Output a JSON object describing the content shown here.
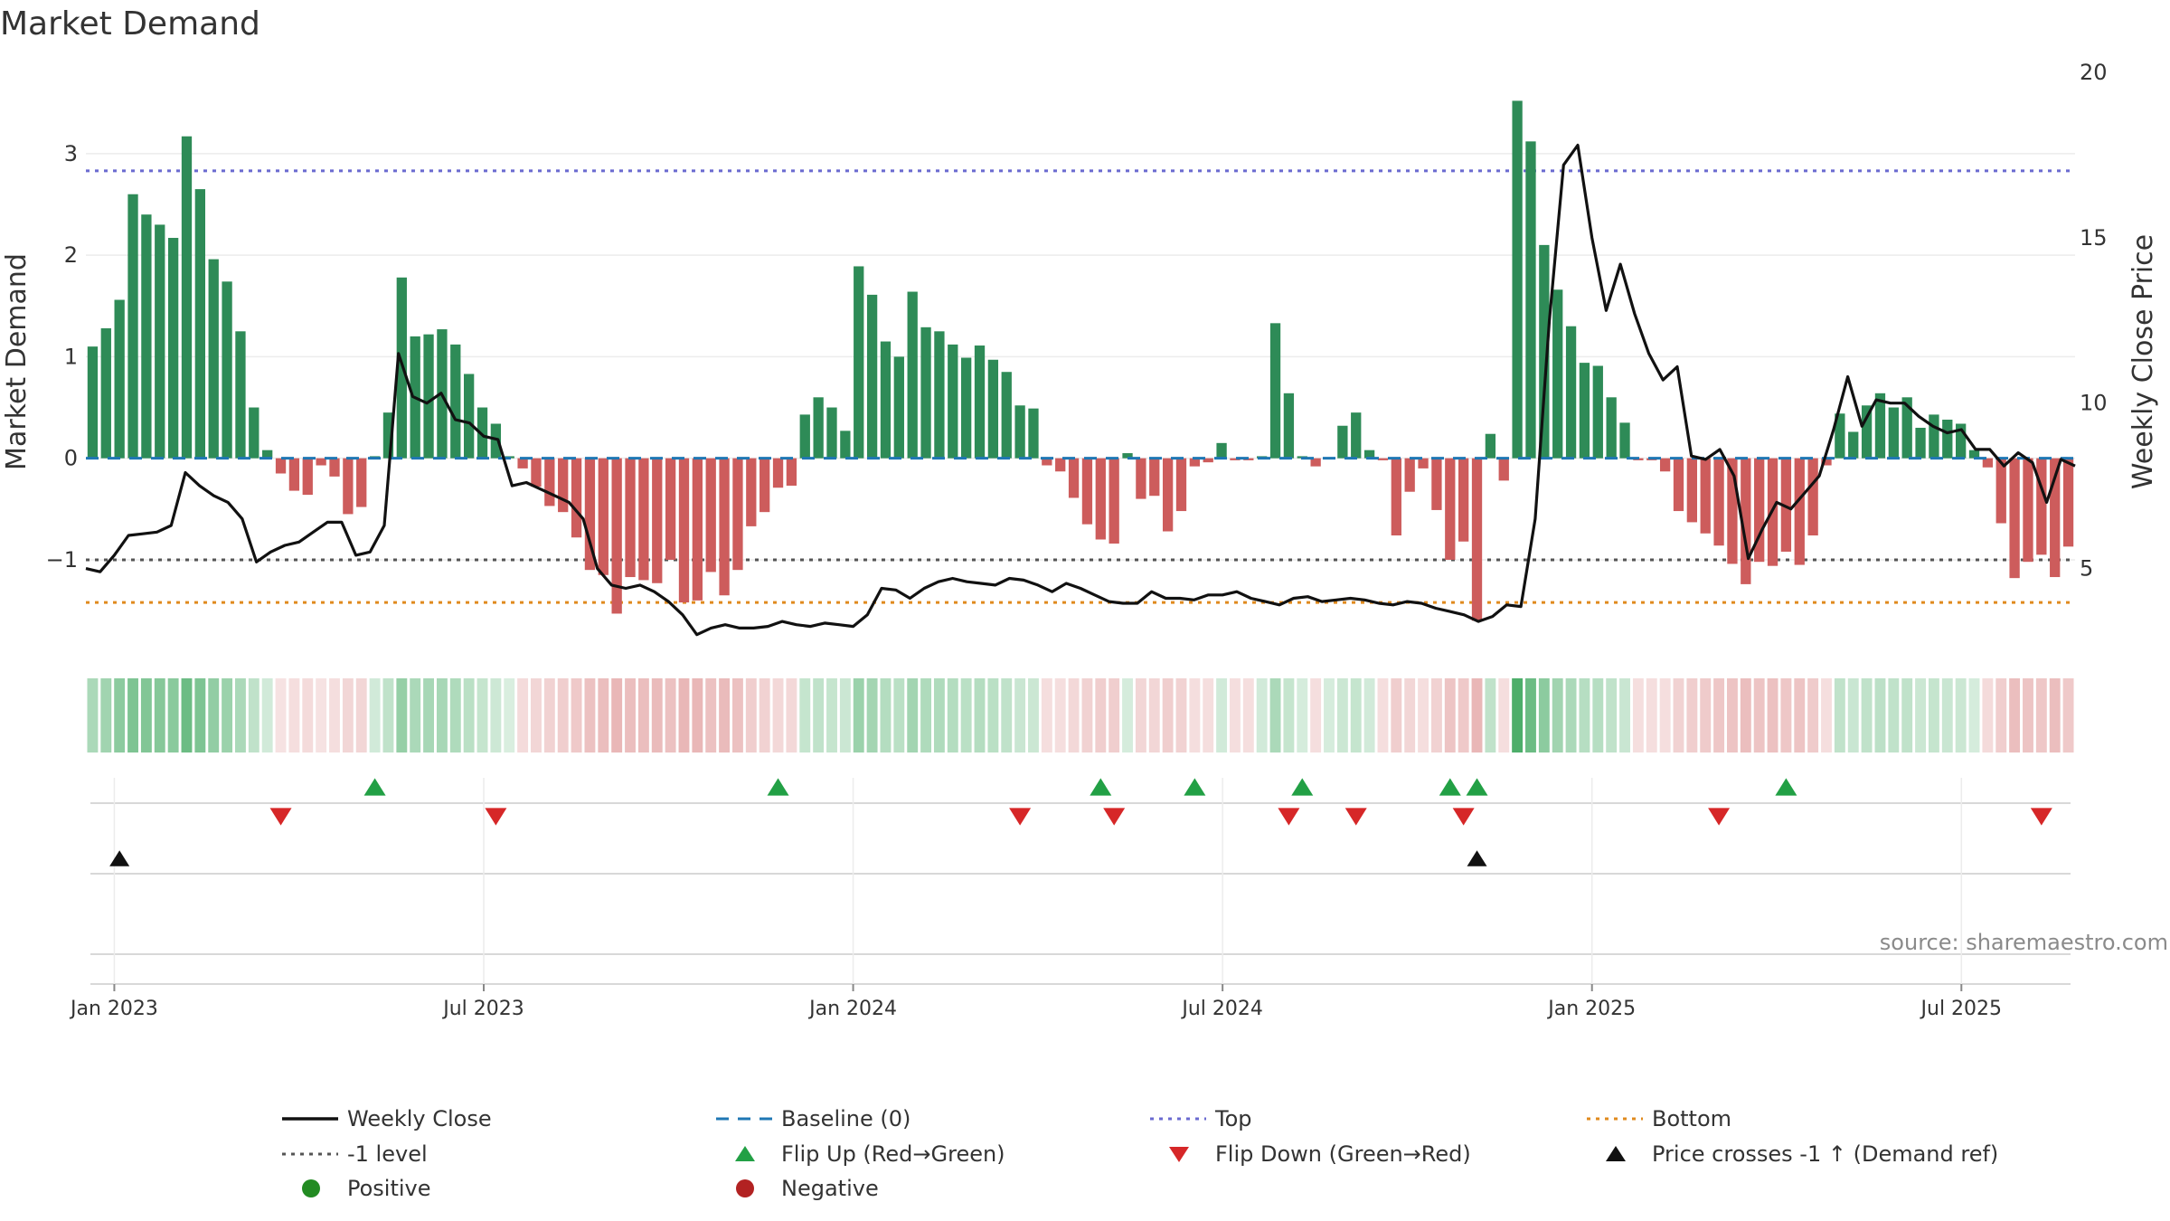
{
  "chart_data": {
    "type": "bar",
    "title": "Market Demand",
    "ylabel": "Market Demand",
    "y2label": "Weekly Close Price",
    "ylim": [
      -1.9,
      3.8
    ],
    "y2lim": [
      2.5,
      20
    ],
    "yticks": [
      {
        "v": 3,
        "label": "3"
      },
      {
        "v": 2,
        "label": "2"
      },
      {
        "v": 1,
        "label": "1"
      },
      {
        "v": 0,
        "label": "0"
      },
      {
        "v": -1,
        "label": "−1"
      }
    ],
    "y2ticks": [
      {
        "v": 20,
        "label": "20"
      },
      {
        "v": 15,
        "label": "15"
      },
      {
        "v": 10,
        "label": "10"
      },
      {
        "v": 5,
        "label": "5"
      }
    ],
    "reference_lines": {
      "baseline": 0,
      "top": 2.83,
      "minus_one": -1,
      "bottom": -1.42
    },
    "week_range": [
      0,
      140
    ],
    "xticks": [
      {
        "week": 2,
        "label": "Jan 2023"
      },
      {
        "week": 28,
        "label": "Jul 2023"
      },
      {
        "week": 54,
        "label": "Jan 2024"
      },
      {
        "week": 80,
        "label": "Jul 2024"
      },
      {
        "week": 106,
        "label": "Jan 2025"
      },
      {
        "week": 132,
        "label": "Jul 2025"
      }
    ],
    "demand": [
      1.1,
      1.28,
      1.56,
      2.6,
      2.4,
      2.3,
      2.17,
      3.17,
      2.65,
      1.96,
      1.74,
      1.25,
      0.5,
      0.08,
      -0.15,
      -0.32,
      -0.36,
      -0.07,
      -0.18,
      -0.55,
      -0.48,
      0.02,
      0.45,
      1.78,
      1.2,
      1.22,
      1.27,
      1.12,
      0.83,
      0.5,
      0.34,
      0.02,
      -0.1,
      -0.28,
      -0.47,
      -0.53,
      -0.78,
      -1.1,
      -1.15,
      -1.53,
      -1.17,
      -1.2,
      -1.23,
      -1.0,
      -1.42,
      -1.4,
      -1.12,
      -1.35,
      -1.1,
      -0.67,
      -0.53,
      -0.29,
      -0.27,
      0.43,
      0.6,
      0.5,
      0.27,
      1.89,
      1.61,
      1.15,
      1.0,
      1.64,
      1.29,
      1.25,
      1.12,
      0.99,
      1.11,
      0.97,
      0.85,
      0.52,
      0.49,
      -0.07,
      -0.13,
      -0.39,
      -0.65,
      -0.8,
      -0.84,
      0.05,
      -0.4,
      -0.37,
      -0.72,
      -0.52,
      -0.08,
      -0.04,
      0.15,
      -0.02,
      -0.02,
      0.02,
      1.33,
      0.64,
      0.02,
      -0.08,
      0.01,
      0.32,
      0.45,
      0.08,
      -0.02,
      -0.76,
      -0.33,
      -0.1,
      -0.51,
      -1.0,
      -0.82,
      -1.6,
      0.24,
      -0.22,
      3.52,
      3.12,
      2.1,
      1.66,
      1.3,
      0.94,
      0.91,
      0.6,
      0.35,
      -0.02,
      -0.02,
      -0.13,
      -0.52,
      -0.63,
      -0.74,
      -0.86,
      -1.04,
      -1.24,
      -1.02,
      -1.06,
      -0.92,
      -1.05,
      -0.76,
      -0.07,
      0.44,
      0.26,
      0.52,
      0.64,
      0.5,
      0.6,
      0.3,
      0.43,
      0.38,
      0.34,
      0.08,
      -0.09,
      -0.64,
      -1.18,
      -1.02,
      -0.95,
      -1.17,
      -0.87
    ],
    "shade_levels": [
      0.4,
      0.45,
      0.55,
      0.62,
      0.6,
      0.58,
      0.56,
      0.7,
      0.62,
      0.52,
      0.48,
      0.4,
      0.3,
      0.22,
      0.18,
      0.2,
      0.22,
      0.18,
      0.2,
      0.25,
      0.25,
      0.22,
      0.3,
      0.5,
      0.4,
      0.42,
      0.42,
      0.38,
      0.33,
      0.28,
      0.24,
      0.18,
      0.22,
      0.25,
      0.28,
      0.3,
      0.33,
      0.38,
      0.4,
      0.44,
      0.4,
      0.4,
      0.42,
      0.38,
      0.44,
      0.44,
      0.38,
      0.42,
      0.38,
      0.3,
      0.28,
      0.24,
      0.24,
      0.28,
      0.3,
      0.28,
      0.25,
      0.48,
      0.44,
      0.36,
      0.33,
      0.44,
      0.38,
      0.38,
      0.36,
      0.33,
      0.36,
      0.33,
      0.3,
      0.26,
      0.25,
      0.2,
      0.2,
      0.24,
      0.28,
      0.3,
      0.3,
      0.2,
      0.25,
      0.25,
      0.3,
      0.28,
      0.2,
      0.2,
      0.22,
      0.2,
      0.2,
      0.22,
      0.4,
      0.28,
      0.2,
      0.2,
      0.2,
      0.25,
      0.28,
      0.22,
      0.2,
      0.3,
      0.25,
      0.2,
      0.28,
      0.36,
      0.33,
      0.44,
      0.3,
      0.2,
      0.85,
      0.7,
      0.55,
      0.45,
      0.4,
      0.35,
      0.35,
      0.3,
      0.26,
      0.2,
      0.2,
      0.2,
      0.28,
      0.3,
      0.32,
      0.34,
      0.36,
      0.4,
      0.36,
      0.38,
      0.34,
      0.36,
      0.32,
      0.2,
      0.3,
      0.26,
      0.3,
      0.32,
      0.3,
      0.3,
      0.25,
      0.28,
      0.26,
      0.25,
      0.2,
      0.22,
      0.3,
      0.4,
      0.36,
      0.34,
      0.4,
      0.33
    ],
    "weekly_close": [
      [
        0,
        5.0
      ],
      [
        1,
        4.9
      ],
      [
        2,
        5.4
      ],
      [
        3,
        6.0
      ],
      [
        4,
        6.05
      ],
      [
        5,
        6.1
      ],
      [
        6,
        6.3
      ],
      [
        7,
        7.9
      ],
      [
        8,
        7.5
      ],
      [
        9,
        7.2
      ],
      [
        10,
        7.0
      ],
      [
        11,
        6.5
      ],
      [
        12,
        5.2
      ],
      [
        13,
        5.5
      ],
      [
        14,
        5.7
      ],
      [
        15,
        5.8
      ],
      [
        16,
        6.1
      ],
      [
        17,
        6.4
      ],
      [
        18,
        6.4
      ],
      [
        19,
        5.4
      ],
      [
        20,
        5.5
      ],
      [
        21,
        6.3
      ],
      [
        22,
        11.5
      ],
      [
        23,
        10.2
      ],
      [
        24,
        10.0
      ],
      [
        25,
        10.3
      ],
      [
        26,
        9.5
      ],
      [
        27,
        9.4
      ],
      [
        28,
        9.0
      ],
      [
        29,
        8.9
      ],
      [
        30,
        7.5
      ],
      [
        31,
        7.6
      ],
      [
        32,
        7.4
      ],
      [
        33,
        7.2
      ],
      [
        34,
        7.0
      ],
      [
        35,
        6.5
      ],
      [
        36,
        5.0
      ],
      [
        37,
        4.5
      ],
      [
        38,
        4.4
      ],
      [
        39,
        4.5
      ],
      [
        40,
        4.3
      ],
      [
        41,
        4.0
      ],
      [
        42,
        3.6
      ],
      [
        43,
        3.0
      ],
      [
        44,
        3.2
      ],
      [
        45,
        3.3
      ],
      [
        46,
        3.2
      ],
      [
        47,
        3.2
      ],
      [
        48,
        3.25
      ],
      [
        49,
        3.4
      ],
      [
        50,
        3.3
      ],
      [
        51,
        3.25
      ],
      [
        52,
        3.35
      ],
      [
        53,
        3.3
      ],
      [
        54,
        3.25
      ],
      [
        55,
        3.6
      ],
      [
        56,
        4.4
      ],
      [
        57,
        4.35
      ],
      [
        58,
        4.1
      ],
      [
        59,
        4.4
      ],
      [
        60,
        4.6
      ],
      [
        61,
        4.7
      ],
      [
        62,
        4.6
      ],
      [
        63,
        4.55
      ],
      [
        64,
        4.5
      ],
      [
        65,
        4.7
      ],
      [
        66,
        4.65
      ],
      [
        67,
        4.5
      ],
      [
        68,
        4.3
      ],
      [
        69,
        4.55
      ],
      [
        70,
        4.4
      ],
      [
        71,
        4.2
      ],
      [
        72,
        4.0
      ],
      [
        73,
        3.95
      ],
      [
        74,
        3.95
      ],
      [
        75,
        4.3
      ],
      [
        76,
        4.1
      ],
      [
        77,
        4.1
      ],
      [
        78,
        4.05
      ],
      [
        79,
        4.2
      ],
      [
        80,
        4.2
      ],
      [
        81,
        4.3
      ],
      [
        82,
        4.1
      ],
      [
        83,
        4.0
      ],
      [
        84,
        3.9
      ],
      [
        85,
        4.1
      ],
      [
        86,
        4.15
      ],
      [
        87,
        4.0
      ],
      [
        88,
        4.05
      ],
      [
        89,
        4.1
      ],
      [
        90,
        4.05
      ],
      [
        91,
        3.95
      ],
      [
        92,
        3.9
      ],
      [
        93,
        4.0
      ],
      [
        94,
        3.95
      ],
      [
        95,
        3.8
      ],
      [
        96,
        3.7
      ],
      [
        97,
        3.6
      ],
      [
        98,
        3.4
      ],
      [
        99,
        3.55
      ],
      [
        100,
        3.9
      ],
      [
        101,
        3.85
      ],
      [
        102,
        6.5
      ],
      [
        103,
        12.5
      ],
      [
        104,
        17.2
      ],
      [
        105,
        17.8
      ],
      [
        106,
        15.0
      ],
      [
        107,
        12.8
      ],
      [
        108,
        14.2
      ],
      [
        109,
        12.7
      ],
      [
        110,
        11.5
      ],
      [
        111,
        10.7
      ],
      [
        112,
        11.1
      ],
      [
        113,
        8.4
      ],
      [
        114,
        8.3
      ],
      [
        115,
        8.6
      ],
      [
        116,
        7.8
      ],
      [
        117,
        5.3
      ],
      [
        118,
        6.2
      ],
      [
        119,
        7.0
      ],
      [
        120,
        6.8
      ],
      [
        121,
        7.3
      ],
      [
        122,
        7.8
      ],
      [
        123,
        9.2
      ],
      [
        124,
        10.8
      ],
      [
        125,
        9.3
      ],
      [
        126,
        10.1
      ],
      [
        127,
        10.0
      ],
      [
        128,
        10.0
      ],
      [
        129,
        9.6
      ],
      [
        130,
        9.3
      ],
      [
        131,
        9.1
      ],
      [
        132,
        9.2
      ],
      [
        133,
        8.6
      ],
      [
        134,
        8.6
      ],
      [
        135,
        8.1
      ],
      [
        136,
        8.5
      ],
      [
        137,
        8.2
      ],
      [
        138,
        7.0
      ],
      [
        139,
        8.3
      ],
      [
        140,
        8.1
      ]
    ],
    "flip_up_weeks": [
      21,
      51,
      75,
      82,
      90,
      101,
      103,
      126
    ],
    "flip_down_weeks": [
      14,
      30,
      69,
      76,
      89,
      94,
      102,
      121,
      145
    ],
    "price_cross_weeks": [
      2,
      103
    ],
    "legend": [
      {
        "key": "weekly_close",
        "label": "Weekly Close"
      },
      {
        "key": "baseline",
        "label": "Baseline (0)"
      },
      {
        "key": "top",
        "label": "Top"
      },
      {
        "key": "bottom",
        "label": "Bottom"
      },
      {
        "key": "minus_one",
        "label": "-1 level"
      },
      {
        "key": "flip_up",
        "label": "Flip Up (Red→Green)"
      },
      {
        "key": "flip_down",
        "label": "Flip Down (Green→Red)"
      },
      {
        "key": "price_cross",
        "label": "Price crosses -1 ↑ (Demand ref)"
      },
      {
        "key": "positive",
        "label": "Positive"
      },
      {
        "key": "negative",
        "label": "Negative"
      }
    ],
    "source": "source: sharemaestro.com",
    "colors": {
      "positive_bar": "#2e8b57",
      "negative_bar": "#cd5c5c",
      "price_line": "#111111",
      "baseline": "#1f77b4",
      "top": "#6a6ad0",
      "minus_one": "#555555",
      "bottom": "#e08a1e",
      "flip_up": "#22a045",
      "flip_down": "#d62728",
      "price_cross": "#111111",
      "positive_dot": "#228b22",
      "negative_dot": "#b22222"
    }
  }
}
